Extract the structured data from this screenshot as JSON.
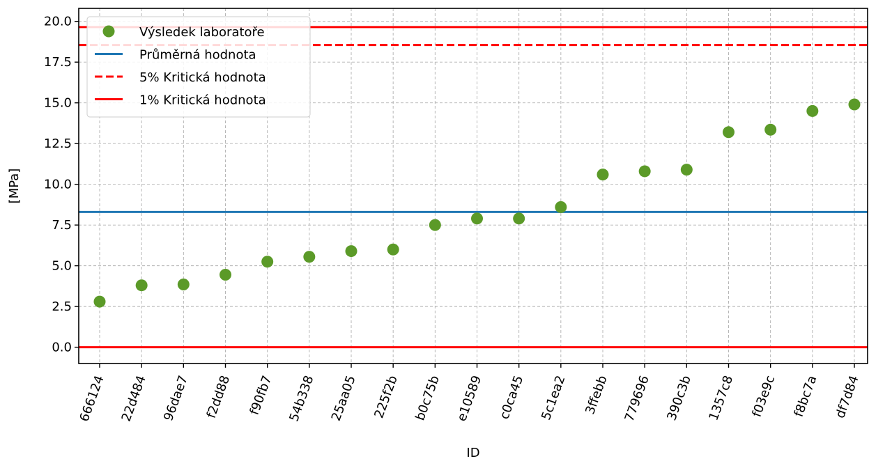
{
  "chart_data": {
    "type": "scatter",
    "xlabel": "ID",
    "ylabel": "[MPa]",
    "ylim": [
      -1.0,
      20.8
    ],
    "yticks": [
      0.0,
      2.5,
      5.0,
      7.5,
      10.0,
      12.5,
      15.0,
      17.5,
      20.0
    ],
    "ytick_labels": [
      "0.0",
      "2.5",
      "5.0",
      "7.5",
      "10.0",
      "12.5",
      "15.0",
      "17.5",
      "20.0"
    ],
    "grid": true,
    "legend_position": "top-left",
    "categories": [
      "666124",
      "22d484",
      "96dae7",
      "f2dd88",
      "f90fb7",
      "54b338",
      "25aa05",
      "225f2b",
      "b0c75b",
      "e10589",
      "c0ca45",
      "5c1ea2",
      "3ffebb",
      "779696",
      "390c3b",
      "1357c8",
      "f03e9c",
      "f8bc7a",
      "df7d84"
    ],
    "series": [
      {
        "name": "Výsledek laboratoře",
        "kind": "points",
        "color": "#5b9a28",
        "values": [
          2.8,
          3.8,
          3.85,
          4.45,
          5.25,
          5.55,
          5.9,
          6.0,
          7.5,
          7.9,
          7.9,
          8.6,
          10.6,
          10.8,
          10.9,
          13.2,
          13.35,
          14.5,
          14.9
        ]
      },
      {
        "name": "Průměrná hodnota",
        "kind": "hline",
        "style": "solid",
        "color": "#1f77b4",
        "y": 8.3
      },
      {
        "name": "5% Kritická hodnota",
        "kind": "hline",
        "style": "dashed",
        "color": "#ff0000",
        "y": 18.55
      },
      {
        "name": "1% Kritická hodnota",
        "kind": "hline",
        "style": "solid",
        "color": "#ff0000",
        "y": 19.65
      },
      {
        "name": "",
        "kind": "hline",
        "style": "solid",
        "color": "#ff0000",
        "y": 0.0
      }
    ]
  }
}
